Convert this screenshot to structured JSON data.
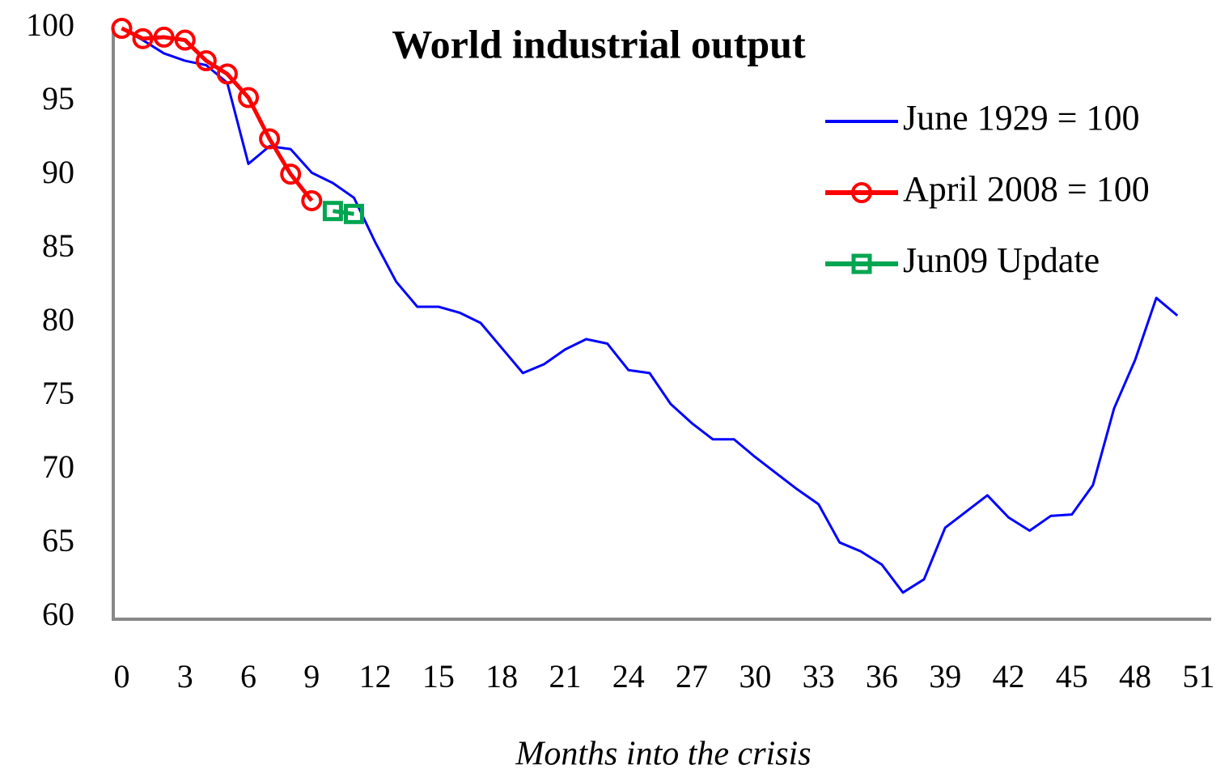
{
  "chart_data": {
    "type": "line",
    "title": "World industrial output",
    "x_label": "Months into the crisis",
    "xlim": [
      -0.4,
      51.6
    ],
    "ylim": [
      60,
      100
    ],
    "xticks": [
      0,
      3,
      6,
      9,
      12,
      15,
      18,
      21,
      24,
      27,
      30,
      33,
      36,
      39,
      42,
      45,
      48,
      51
    ],
    "yticks": [
      60,
      65,
      70,
      75,
      80,
      85,
      90,
      95,
      100
    ],
    "grid": false,
    "legend": "upper right",
    "series": [
      {
        "name": "June 1929 = 100",
        "color": "#0000ff",
        "marker": "none",
        "x": [
          0,
          1,
          2,
          3,
          4,
          5,
          6,
          7,
          8,
          9,
          10,
          11,
          12,
          13,
          14,
          15,
          16,
          17,
          18,
          19,
          20,
          21,
          22,
          23,
          24,
          25,
          26,
          27,
          28,
          29,
          30,
          31,
          32,
          33,
          34,
          35,
          36,
          37,
          38,
          39,
          40,
          41,
          42,
          43,
          44,
          45,
          46,
          47,
          48,
          49,
          50
        ],
        "values": [
          100,
          99.2,
          98.3,
          97.8,
          97.5,
          96.3,
          90.8,
          92,
          91.8,
          90.2,
          89.5,
          88.5,
          85.5,
          82.8,
          81.1,
          81.1,
          80.7,
          80,
          78.3,
          76.6,
          77.2,
          78.2,
          78.9,
          78.6,
          76.8,
          76.6,
          74.5,
          73.2,
          72.1,
          72.1,
          70.9,
          69.8,
          68.7,
          67.7,
          65.1,
          64.5,
          63.6,
          61.7,
          62.6,
          66.1,
          67.2,
          68.3,
          66.8,
          65.9,
          66.9,
          67,
          69,
          74.2,
          77.5,
          81.7,
          80.5
        ]
      },
      {
        "name": "April 2008 = 100",
        "color": "#ff0000",
        "marker": "circle",
        "x": [
          0,
          1,
          2,
          3,
          4,
          5,
          6,
          7,
          8,
          9
        ],
        "values": [
          100,
          99.3,
          99.4,
          99.2,
          97.8,
          96.9,
          95.3,
          92.5,
          90.1,
          88.3
        ]
      },
      {
        "name": "Jun09 Update",
        "color": "#00a550",
        "marker": "square",
        "x": [
          10,
          11
        ],
        "values": [
          87.6,
          87.4
        ]
      }
    ]
  }
}
